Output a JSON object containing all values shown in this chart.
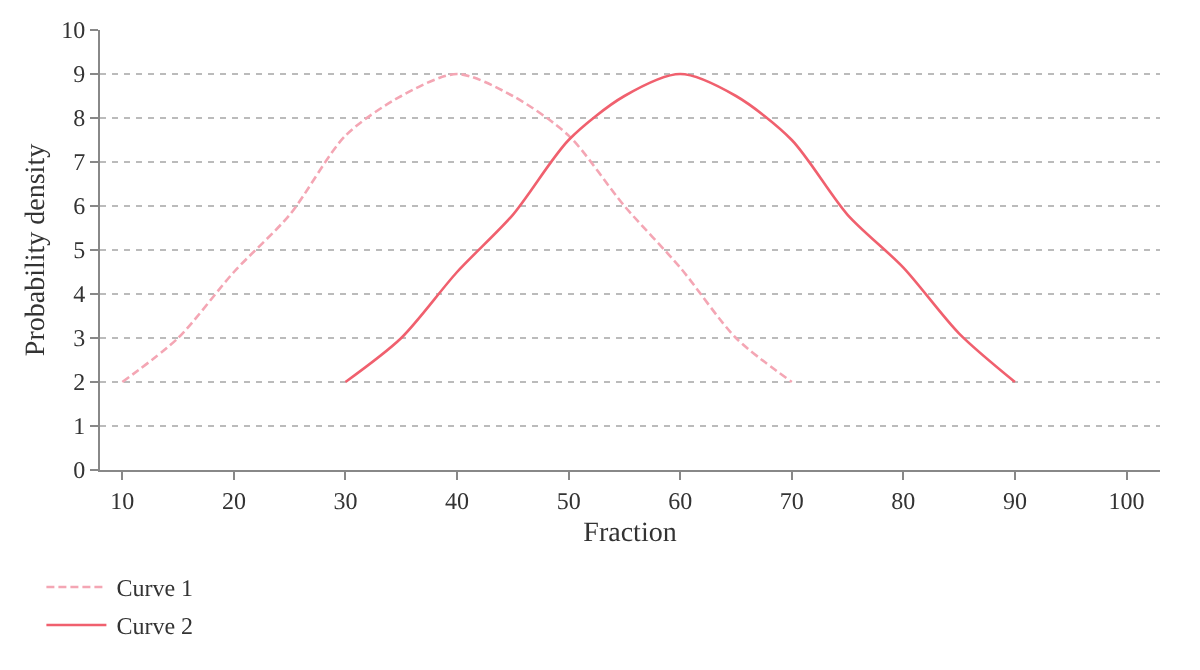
{
  "chart_data": {
    "type": "line",
    "xlabel": "Fraction",
    "ylabel": "Probability density",
    "series": [
      {
        "name": "Curve 1",
        "color": "#f4a6b4",
        "line_style": "dashed",
        "x": [
          10,
          15,
          20,
          25,
          30,
          35,
          40,
          45,
          50,
          55,
          60,
          65,
          70
        ],
        "values": [
          2,
          3,
          4.5,
          5.8,
          7.6,
          8.5,
          9,
          8.5,
          7.6,
          6,
          4.6,
          3,
          2
        ]
      },
      {
        "name": "Curve 2",
        "color": "#f0606e",
        "line_style": "solid",
        "x": [
          30,
          35,
          40,
          45,
          50,
          55,
          60,
          65,
          70,
          75,
          80,
          85,
          90
        ],
        "values": [
          2,
          3,
          4.5,
          5.8,
          7.5,
          8.5,
          9,
          8.5,
          7.5,
          5.8,
          4.6,
          3.1,
          2
        ]
      }
    ],
    "xlim": [
      8,
      103
    ],
    "xticks": [
      10,
      20,
      30,
      40,
      50,
      60,
      70,
      80,
      90,
      100
    ],
    "ylim": [
      0,
      10
    ],
    "yticks": [
      0,
      1,
      2,
      3,
      4,
      5,
      6,
      7,
      8,
      9,
      10
    ],
    "grid": "y",
    "legend": "bottom left",
    "marker": "none"
  }
}
